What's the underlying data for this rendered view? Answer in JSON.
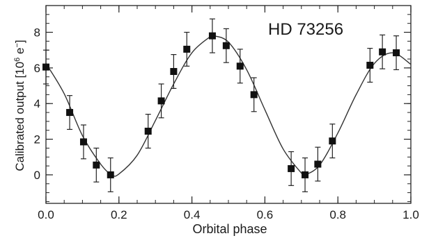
{
  "chart_data": {
    "type": "scatter",
    "title": "HD 73256",
    "xlabel": "Orbital phase",
    "ylabel": "Calibrated output [10",
    "ylabel_sup": "6",
    "ylabel_tail": " e",
    "ylabel_sup2": "−",
    "ylabel_end": "]",
    "xlim": [
      0.0,
      1.0
    ],
    "ylim": [
      -1.6,
      9.5
    ],
    "x_ticks": [
      0.0,
      0.2,
      0.4,
      0.6,
      0.8,
      1.0
    ],
    "x_tick_labels": [
      "0.0",
      "0.2",
      "0.4",
      "0.6",
      "0.8",
      "1.0"
    ],
    "x_minor_step": 0.05,
    "y_ticks": [
      0,
      2,
      4,
      6,
      8
    ],
    "y_tick_labels": [
      "0",
      "2",
      "4",
      "6",
      "8"
    ],
    "y_minor_step": 0.5,
    "grid": false,
    "legend": "none",
    "series": [
      {
        "marker": "square",
        "x": [
          0.0,
          0.065,
          0.103,
          0.138,
          0.177,
          0.28,
          0.316,
          0.35,
          0.386,
          0.456,
          0.494,
          0.532,
          0.57,
          0.672,
          0.71,
          0.745,
          0.785,
          0.888,
          0.922,
          0.96
        ],
        "y": [
          6.05,
          3.5,
          1.85,
          0.55,
          0.0,
          2.45,
          4.15,
          5.8,
          7.05,
          7.8,
          7.25,
          6.1,
          4.5,
          0.35,
          0.0,
          0.6,
          1.9,
          6.15,
          6.9,
          6.85
        ],
        "yerr": [
          0.95,
          0.95,
          0.95,
          0.95,
          0.95,
          0.95,
          0.95,
          0.95,
          0.95,
          0.95,
          0.95,
          0.95,
          0.95,
          0.95,
          0.95,
          0.95,
          0.95,
          0.95,
          0.95,
          0.95
        ]
      },
      {
        "style": "line",
        "x": [
          0.0,
          0.05,
          0.1,
          0.15,
          0.18,
          0.2,
          0.25,
          0.3,
          0.35,
          0.4,
          0.45,
          0.46,
          0.5,
          0.55,
          0.6,
          0.65,
          0.7,
          0.71,
          0.75,
          0.8,
          0.85,
          0.9,
          0.95,
          1.0
        ],
        "y": [
          6.25,
          4.55,
          2.2,
          0.6,
          0.0,
          0.05,
          1.1,
          3.05,
          5.1,
          6.85,
          7.75,
          7.8,
          7.45,
          5.9,
          3.65,
          1.45,
          0.1,
          0.0,
          0.55,
          2.35,
          4.5,
          6.25,
          6.85,
          6.2
        ]
      }
    ]
  }
}
